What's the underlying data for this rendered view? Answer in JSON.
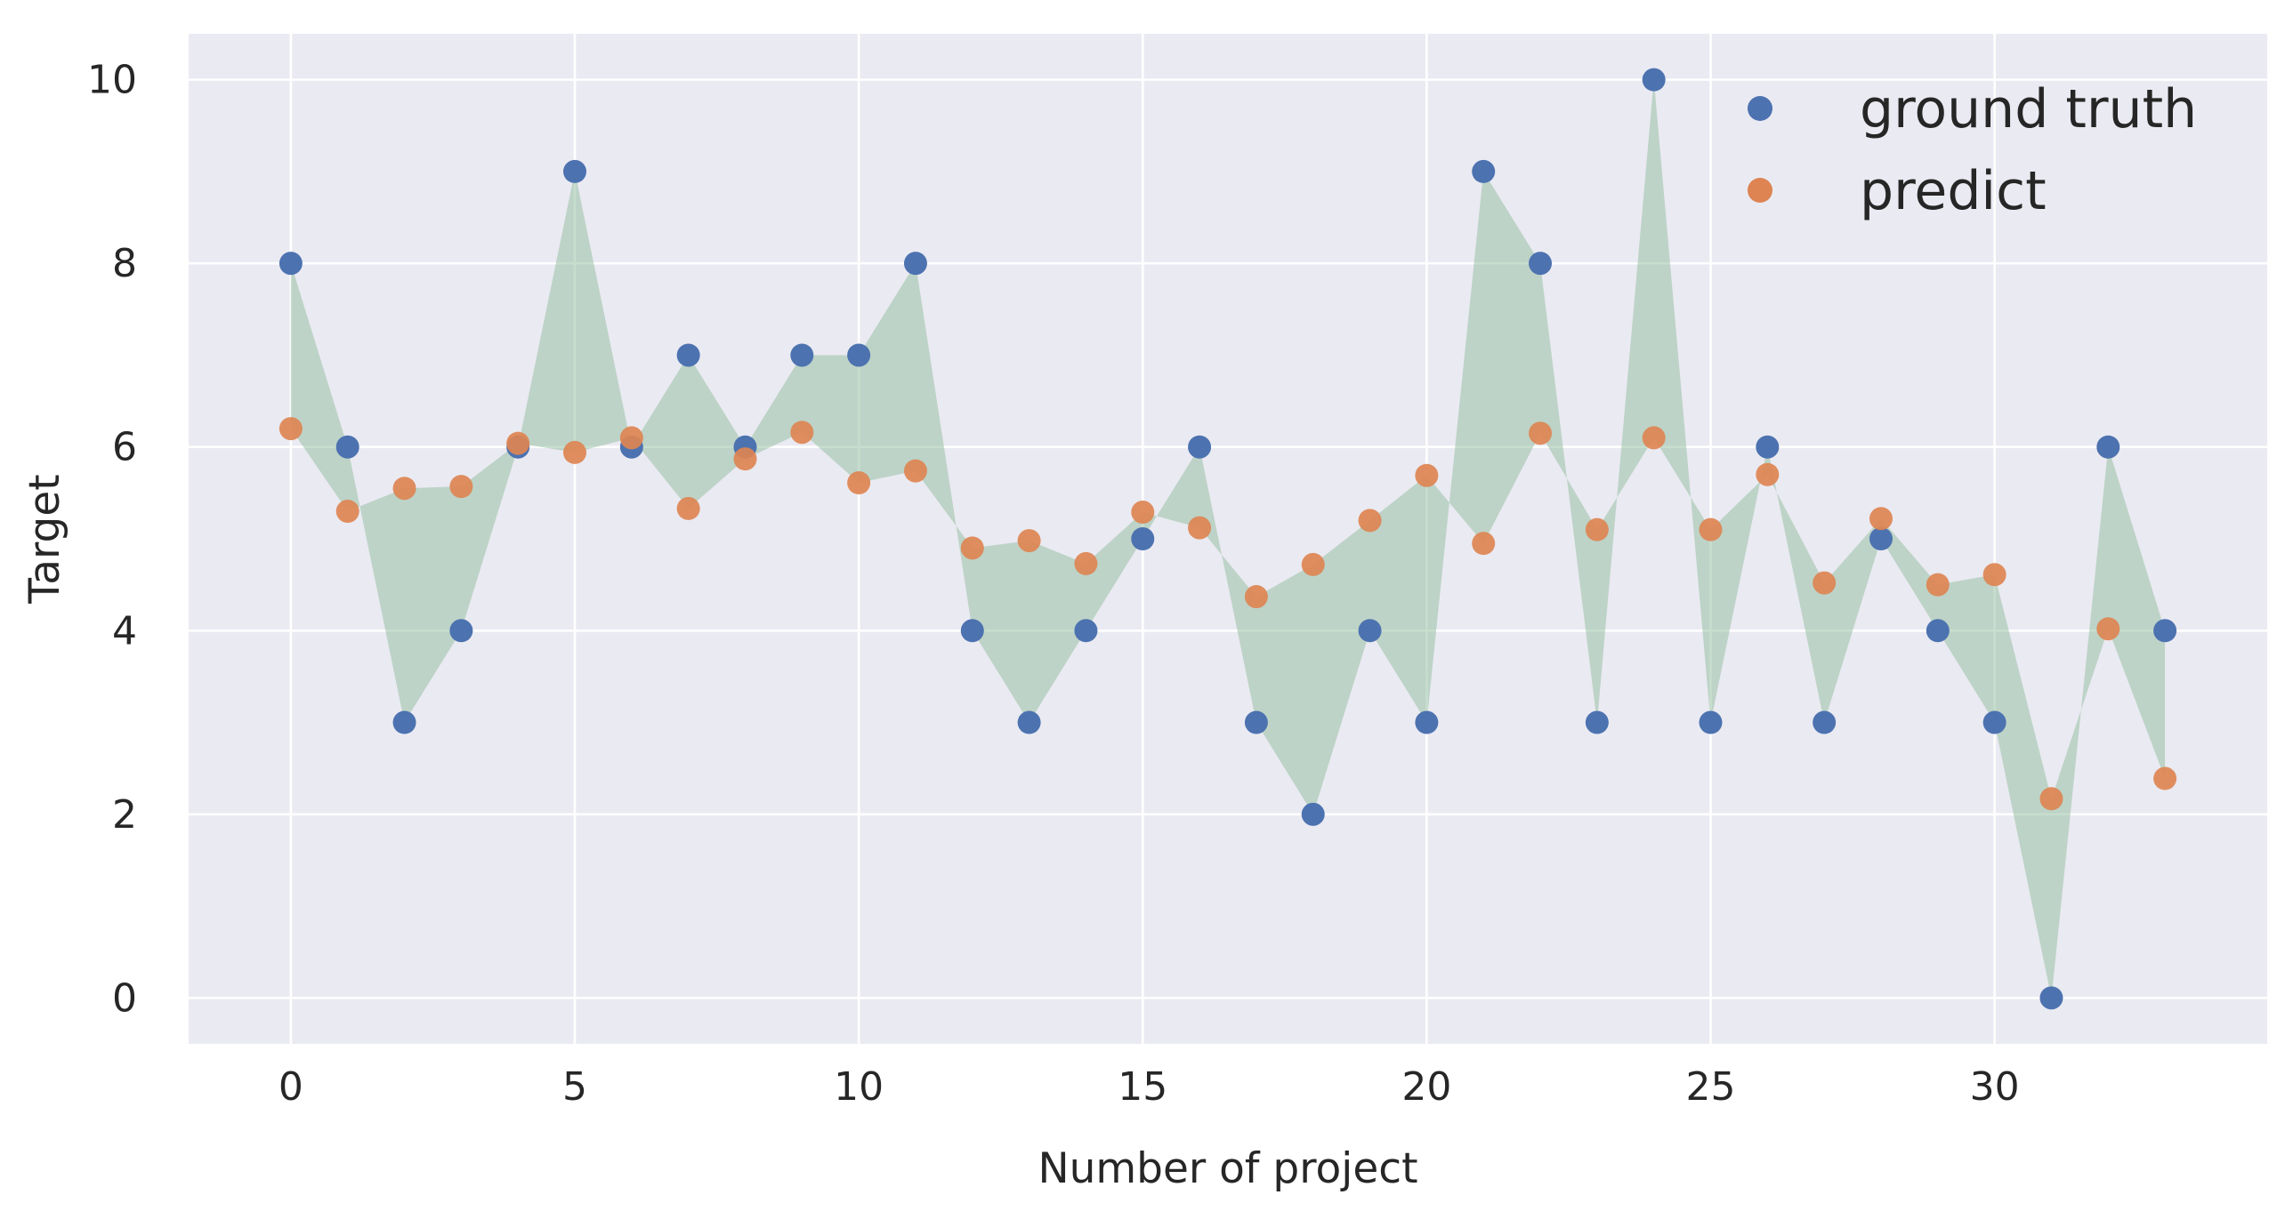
{
  "chart_data": {
    "type": "scatter",
    "title": "",
    "xlabel": "Number of project",
    "ylabel": "Target",
    "xlim": [
      -1.8,
      34.8
    ],
    "ylim": [
      -0.5,
      10.5
    ],
    "xticks": [
      0,
      5,
      10,
      15,
      20,
      25,
      30
    ],
    "yticks": [
      0,
      2,
      4,
      6,
      8,
      10
    ],
    "grid": true,
    "legend_position": "top-right",
    "background": "#eaeaf2",
    "fill_between": {
      "color": "#8fbc9b",
      "between": [
        "ground truth",
        "predict"
      ]
    },
    "series": [
      {
        "name": "ground truth",
        "color": "#4c72b0",
        "x": [
          0,
          1,
          2,
          3,
          4,
          5,
          6,
          7,
          8,
          9,
          10,
          11,
          12,
          13,
          14,
          15,
          16,
          17,
          18,
          19,
          20,
          21,
          22,
          23,
          24,
          25,
          26,
          27,
          28,
          29,
          30,
          31,
          32,
          33
        ],
        "values": [
          8,
          6,
          3,
          4,
          6,
          9,
          6,
          7,
          6,
          7,
          7,
          8,
          4,
          3,
          4,
          5,
          6,
          3,
          2,
          4,
          3,
          9,
          8,
          3,
          10,
          3,
          6,
          3,
          5,
          4,
          3,
          0,
          6,
          4
        ]
      },
      {
        "name": "predict",
        "color": "#dd8452",
        "x": [
          0,
          1,
          2,
          3,
          4,
          5,
          6,
          7,
          8,
          9,
          10,
          11,
          12,
          13,
          14,
          15,
          16,
          17,
          18,
          19,
          20,
          21,
          22,
          23,
          24,
          25,
          26,
          27,
          28,
          29,
          30,
          31,
          32,
          33
        ],
        "values": [
          6.2,
          5.3,
          5.55,
          5.57,
          6.04,
          5.94,
          6.1,
          5.33,
          5.87,
          6.16,
          5.61,
          5.74,
          4.9,
          4.98,
          4.73,
          5.29,
          5.12,
          4.37,
          4.72,
          5.2,
          5.69,
          4.95,
          6.15,
          5.1,
          6.1,
          5.1,
          5.7,
          4.52,
          5.22,
          4.5,
          4.61,
          2.17,
          4.02,
          2.39
        ]
      }
    ]
  }
}
